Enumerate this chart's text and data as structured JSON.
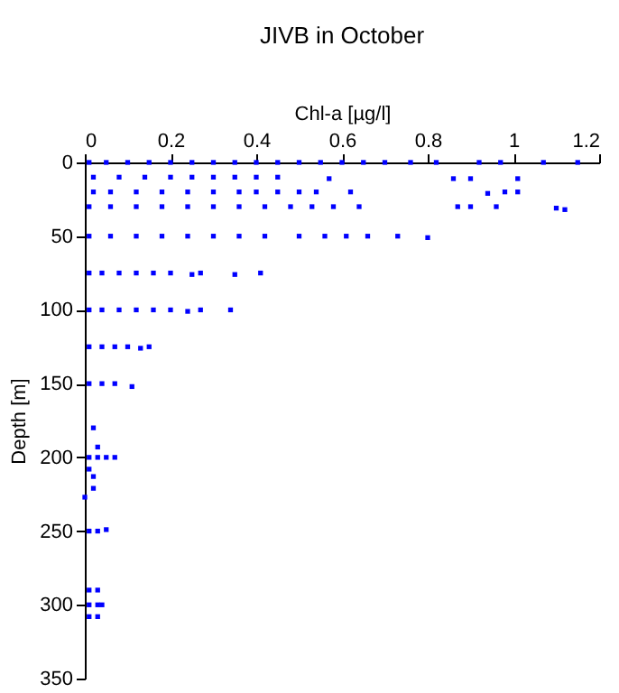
{
  "chart_data": {
    "type": "scatter",
    "title": "JIVB in October",
    "xlabel": "Chl-a [µg/l]",
    "ylabel": "Depth [m]",
    "xlim": [
      0,
      1.2
    ],
    "xticks": [
      0,
      0.2,
      0.4,
      0.6,
      0.8,
      1,
      1.2
    ],
    "ylim": [
      350,
      0
    ],
    "yticks": [
      0,
      50,
      100,
      150,
      200,
      250,
      300,
      350
    ],
    "grid": false,
    "marker": "square",
    "series": [
      {
        "color": "#0000ff",
        "x": [
          0.01,
          0.05,
          0.1,
          0.15,
          0.2,
          0.25,
          0.3,
          0.35,
          0.4,
          0.45,
          0.5,
          0.55,
          0.6,
          0.65,
          0.7,
          0.76,
          0.82,
          0.92,
          0.97,
          1.07,
          1.15,
          0.02,
          0.08,
          0.14,
          0.2,
          0.25,
          0.3,
          0.35,
          0.4,
          0.45,
          0.57,
          0.86,
          0.9,
          1.01,
          0.02,
          0.06,
          0.12,
          0.18,
          0.24,
          0.3,
          0.36,
          0.4,
          0.45,
          0.5,
          0.54,
          0.62,
          0.94,
          0.98,
          1.01,
          0.01,
          0.06,
          0.12,
          0.18,
          0.24,
          0.3,
          0.36,
          0.42,
          0.48,
          0.53,
          0.58,
          0.64,
          0.87,
          0.9,
          0.96,
          1.1,
          1.12,
          0.01,
          0.06,
          0.12,
          0.18,
          0.24,
          0.3,
          0.36,
          0.42,
          0.5,
          0.56,
          0.61,
          0.66,
          0.73,
          0.8,
          0.01,
          0.04,
          0.08,
          0.12,
          0.16,
          0.2,
          0.25,
          0.27,
          0.35,
          0.41,
          0.01,
          0.04,
          0.08,
          0.12,
          0.16,
          0.2,
          0.24,
          0.27,
          0.34,
          0.01,
          0.04,
          0.07,
          0.1,
          0.13,
          0.15,
          0.01,
          0.04,
          0.07,
          0.11,
          0.02,
          0.03,
          0.01,
          0.03,
          0.05,
          0.07,
          0.01,
          0.02,
          0.02,
          0,
          0.01,
          0.03,
          0.05,
          0.01,
          0.03,
          0.01,
          0.03,
          0.04,
          0.01,
          0.03
        ],
        "values": [
          0,
          0,
          0,
          0,
          0,
          0,
          0,
          0,
          0,
          0,
          0,
          0,
          0,
          0,
          0,
          0,
          0,
          0,
          0,
          0,
          0,
          10,
          10,
          10,
          10,
          10,
          10,
          10,
          10,
          10,
          11,
          11,
          11,
          11,
          20,
          20,
          20,
          20,
          20,
          20,
          20,
          20,
          20,
          20,
          20,
          20,
          21,
          20,
          20,
          30,
          30,
          30,
          30,
          30,
          30,
          30,
          30,
          30,
          30,
          30,
          30,
          30,
          30,
          30,
          31,
          32,
          50,
          50,
          50,
          50,
          50,
          50,
          50,
          50,
          50,
          50,
          50,
          50,
          50,
          51,
          75,
          75,
          75,
          75,
          75,
          75,
          76,
          75,
          76,
          75,
          100,
          100,
          100,
          100,
          100,
          100,
          101,
          100,
          100,
          125,
          125,
          125,
          125,
          126,
          125,
          150,
          150,
          150,
          152,
          180,
          193,
          200,
          200,
          200,
          200,
          208,
          213,
          221,
          227,
          250,
          250,
          249,
          290,
          290,
          300,
          300,
          300,
          308,
          308
        ]
      }
    ]
  }
}
